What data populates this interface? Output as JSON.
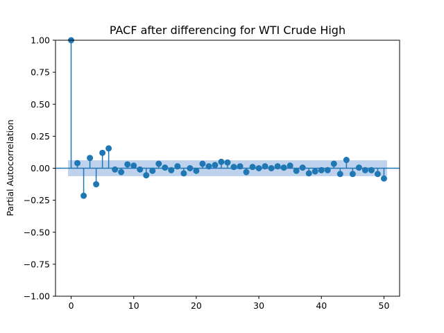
{
  "chart_data": {
    "type": "scatter",
    "title": "PACF after differencing for WTI Crude High",
    "xlabel": "",
    "ylabel": "Partial Autocorrelation",
    "xlim": [
      -2.5,
      52.5
    ],
    "ylim": [
      -1.0,
      1.0
    ],
    "xticks": [
      0,
      10,
      20,
      30,
      40,
      50
    ],
    "xtick_labels": [
      "0",
      "10",
      "20",
      "30",
      "40",
      "50"
    ],
    "yticks": [
      -1.0,
      -0.75,
      -0.5,
      -0.25,
      0.0,
      0.25,
      0.5,
      0.75,
      1.0
    ],
    "ytick_labels": [
      "−1.00",
      "−0.75",
      "−0.50",
      "−0.25",
      "0.00",
      "0.25",
      "0.50",
      "0.75",
      "1.00"
    ],
    "grid": false,
    "confidence_band": {
      "lower": -0.062,
      "upper": 0.062,
      "color": "#aec7e8"
    },
    "series_color": "#1f77b4",
    "x": [
      0,
      1,
      2,
      3,
      4,
      5,
      6,
      7,
      8,
      9,
      10,
      11,
      12,
      13,
      14,
      15,
      16,
      17,
      18,
      19,
      20,
      21,
      22,
      23,
      24,
      25,
      26,
      27,
      28,
      29,
      30,
      31,
      32,
      33,
      34,
      35,
      36,
      37,
      38,
      39,
      40,
      41,
      42,
      43,
      44,
      45,
      46,
      47,
      48,
      49,
      50
    ],
    "values": [
      1.0,
      0.04,
      -0.215,
      0.08,
      -0.125,
      0.12,
      0.155,
      -0.01,
      -0.03,
      0.03,
      0.02,
      -0.01,
      -0.055,
      -0.02,
      0.035,
      0.005,
      -0.015,
      0.015,
      -0.04,
      0.0,
      -0.02,
      0.035,
      0.015,
      0.025,
      0.05,
      0.045,
      0.01,
      0.015,
      -0.03,
      0.01,
      0.0,
      0.015,
      0.0,
      0.015,
      0.005,
      0.02,
      -0.02,
      0.005,
      -0.04,
      -0.025,
      -0.015,
      -0.015,
      0.035,
      -0.045,
      0.065,
      -0.045,
      0.005,
      -0.015,
      -0.015,
      -0.045,
      -0.08
    ]
  }
}
